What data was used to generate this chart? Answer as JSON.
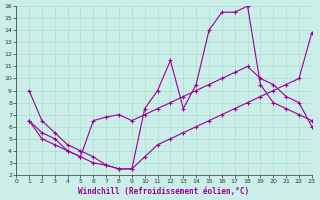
{
  "background_color": "#cceee8",
  "grid_color": "#aaddcc",
  "line_color": "#990099",
  "xlabel": "Windchill (Refroidissement éolien,°C)",
  "xlim": [
    0,
    23
  ],
  "ylim": [
    2,
    16
  ],
  "xticks": [
    0,
    1,
    2,
    3,
    4,
    5,
    6,
    7,
    8,
    9,
    10,
    11,
    12,
    13,
    14,
    15,
    16,
    17,
    18,
    19,
    20,
    21,
    22,
    23
  ],
  "yticks": [
    2,
    3,
    4,
    5,
    6,
    7,
    8,
    9,
    10,
    11,
    12,
    13,
    14,
    15,
    16
  ],
  "series1_x": [
    1,
    2,
    3,
    4,
    5,
    6,
    7,
    8,
    9,
    10,
    11,
    12,
    13,
    14,
    15,
    16,
    17,
    18,
    19,
    20,
    21,
    22,
    23
  ],
  "series1_y": [
    9.0,
    6.5,
    5.5,
    4.5,
    4.0,
    3.5,
    2.8,
    2.5,
    2.5,
    7.5,
    9.0,
    11.5,
    7.5,
    9.5,
    14.0,
    15.5,
    15.5,
    16.0,
    9.5,
    8.0,
    7.5,
    7.0,
    6.5
  ],
  "series2_x": [
    1,
    2,
    3,
    4,
    5,
    6,
    7,
    8,
    9,
    10,
    11,
    12,
    13,
    14,
    15,
    16,
    17,
    18,
    19,
    20,
    21,
    22,
    23
  ],
  "series2_y": [
    6.5,
    5.5,
    5.0,
    4.0,
    3.5,
    6.5,
    6.8,
    7.0,
    6.5,
    7.0,
    7.5,
    8.0,
    8.5,
    9.0,
    9.5,
    10.0,
    10.5,
    11.0,
    10.0,
    9.5,
    8.5,
    8.0,
    6.0
  ],
  "series3_x": [
    1,
    2,
    3,
    4,
    5,
    6,
    7,
    8,
    9,
    10,
    11,
    12,
    13,
    14,
    15,
    16,
    17,
    18,
    19,
    20,
    21,
    22,
    23
  ],
  "series3_y": [
    6.5,
    5.0,
    4.5,
    4.0,
    3.5,
    3.0,
    2.8,
    2.5,
    2.5,
    3.5,
    4.5,
    5.0,
    5.5,
    6.0,
    6.5,
    7.0,
    7.5,
    8.0,
    8.5,
    9.0,
    9.5,
    10.0,
    13.8
  ]
}
